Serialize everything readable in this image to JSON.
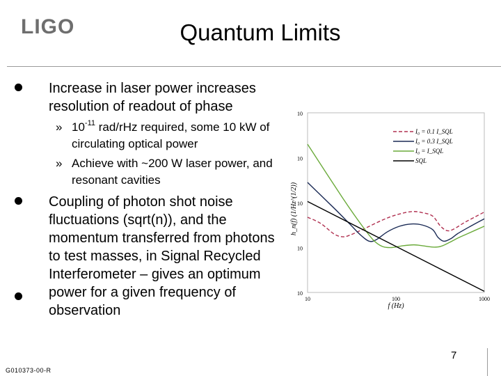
{
  "header": {
    "logo_text": "LIGO",
    "title": "Quantum Limits"
  },
  "content": {
    "bullet1": "Increase in laser power increases resolution of readout of phase",
    "sub1_mark": "»",
    "sub1_base": "10",
    "sub1_exp": "-11",
    "sub1_rest": " rad/rHz required, some 10 kW of circulating optical power",
    "sub2_mark": "»",
    "sub2": "Achieve with ~200 W laser power, and resonant cavities",
    "bullet2": "Coupling of photon shot noise fluctuations (sqrt(n)), and the momentum transferred from photons to test masses, in Signal Recycled Interferometer – gives an optimum power for a given frequency of observation"
  },
  "footer": {
    "page_number": "7",
    "doc_id": "G010373-00-R"
  },
  "chart_data": {
    "type": "line",
    "xscale": "log",
    "yscale": "log",
    "xlim": [
      10,
      1000
    ],
    "x_ticks": [
      "10",
      "100",
      "1000"
    ],
    "y_ticks": [
      "10",
      "10",
      "10",
      "10",
      "10"
    ],
    "xlabel": "f (Hz)",
    "ylabel": "h_n(f) (1/Hz^(1/2))",
    "legend_position": "top-right",
    "colors": {
      "i0_01": "#b03050",
      "i0_03": "#1a2a55",
      "i0_10": "#6aaa3a",
      "sql": "#000000"
    },
    "legend": [
      {
        "key": "i0_01",
        "label": "I₀ = 0.1 I_SQL"
      },
      {
        "key": "i0_03",
        "label": "I₀ = 0.3 I_SQL"
      },
      {
        "key": "i0_10",
        "label": "I₀ = I_SQL"
      },
      {
        "key": "sql",
        "label": "SQL"
      }
    ],
    "series": [
      {
        "key": "i0_01",
        "x": [
          10,
          14,
          20,
          25,
          30,
          45,
          70,
          100,
          150,
          200,
          260,
          320,
          380,
          450,
          600,
          800,
          1000
        ],
        "y_dec": [
          1.35,
          1.08,
          0.6,
          0.48,
          0.55,
          0.86,
          1.22,
          1.45,
          1.6,
          1.55,
          1.4,
          0.95,
          0.75,
          0.82,
          1.12,
          1.38,
          1.58
        ]
      },
      {
        "key": "i0_03",
        "x": [
          10,
          20,
          30,
          40,
          50,
          60,
          80,
          110,
          150,
          200,
          260,
          300,
          350,
          420,
          500,
          700,
          1000
        ],
        "y_dec": [
          2.9,
          1.75,
          1.05,
          0.55,
          0.28,
          0.35,
          0.7,
          0.95,
          1.05,
          1.0,
          0.8,
          0.45,
          0.28,
          0.4,
          0.62,
          0.95,
          1.28
        ]
      },
      {
        "key": "i0_10",
        "x": [
          10,
          25,
          40,
          55,
          70,
          90,
          120,
          160,
          200,
          260,
          320,
          400,
          500,
          650,
          1000
        ],
        "y_dec": [
          4.6,
          2.2,
          1.05,
          0.35,
          0.05,
          0.0,
          0.08,
          0.12,
          0.08,
          0.02,
          0.05,
          0.22,
          0.42,
          0.62,
          0.95
        ]
      },
      {
        "key": "sql",
        "x": [
          10,
          1000
        ],
        "y_dec": [
          2.05,
          -1.95
        ]
      }
    ]
  }
}
